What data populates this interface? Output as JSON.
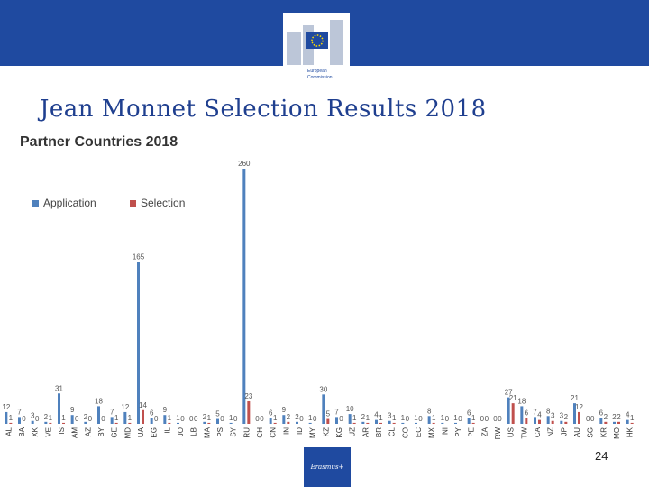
{
  "header": {
    "org": [
      "European",
      "Commission"
    ]
  },
  "slide_title": "Jean Monnet Selection Results 2018",
  "page_number": 24,
  "footer_logo": "Erasmus+",
  "chart_data": {
    "type": "bar",
    "title": "Partner Countries 2018",
    "categories": [
      "AL",
      "BA",
      "XK",
      "VE",
      "IS",
      "AM",
      "AZ",
      "BY",
      "GE",
      "MD",
      "UA",
      "EG",
      "IL",
      "JO",
      "LB",
      "MA",
      "PS",
      "SY",
      "RU",
      "CH",
      "CN",
      "IN",
      "ID",
      "MY",
      "KZ",
      "KG",
      "UZ",
      "AR",
      "BR",
      "CL",
      "CO",
      "EC",
      "MX",
      "NI",
      "PY",
      "PE",
      "ZA",
      "RW",
      "US",
      "TW",
      "CA",
      "NZ",
      "JP",
      "AU",
      "SG",
      "KR",
      "MO",
      "HK"
    ],
    "series": [
      {
        "name": "Application",
        "color": "#4f81bd",
        "values": [
          12,
          7,
          3,
          2,
          31,
          9,
          2,
          18,
          7,
          12,
          165,
          6,
          9,
          1,
          0,
          2,
          5,
          1,
          260,
          0,
          6,
          9,
          2,
          1,
          30,
          7,
          10,
          2,
          4,
          3,
          1,
          1,
          8,
          1,
          1,
          6,
          0,
          0,
          27,
          18,
          7,
          8,
          3,
          21,
          0,
          6,
          2,
          4
        ]
      },
      {
        "name": "Selection",
        "color": "#c0504d",
        "values": [
          1,
          0,
          0,
          1,
          1,
          0,
          0,
          0,
          1,
          1,
          14,
          0,
          1,
          0,
          0,
          1,
          0,
          0,
          23,
          0,
          1,
          2,
          0,
          0,
          5,
          0,
          1,
          1,
          1,
          1,
          0,
          0,
          1,
          0,
          0,
          1,
          0,
          0,
          21,
          6,
          4,
          3,
          2,
          12,
          0,
          2,
          2,
          1
        ]
      }
    ],
    "ylim": [
      0,
      260
    ],
    "legend": "top-left"
  }
}
